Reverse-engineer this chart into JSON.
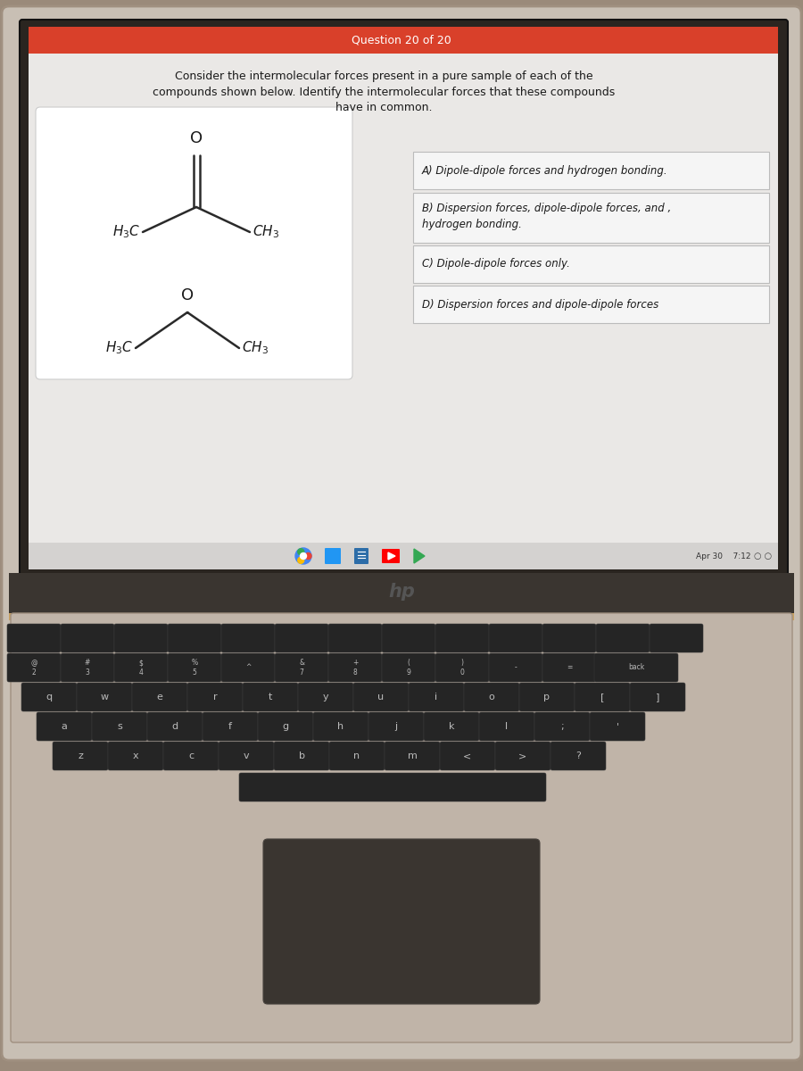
{
  "header_text": "Question 20 of 20",
  "header_bg": "#d9402a",
  "header_text_color": "#ffffff",
  "question_text_line1": "Consider the intermolecular forces present in a pure sample of each of the",
  "question_text_line2": "compounds shown below. Identify the intermolecular forces that these compounds",
  "question_text_line3": "have in common.",
  "screen_bg": "#d4d2d0",
  "content_bg": "#eae8e6",
  "answer_box_bg": "#f5f5f5",
  "answer_box_border": "#bbbbbb",
  "answer_a": "A) Dipole-dipole forces and hydrogen bonding.",
  "answer_b_line1": "B) Dispersion forces, dipole-dipole forces, and ,",
  "answer_b_line2": "hydrogen bonding.",
  "answer_c": "C) Dipole-dipole forces only.",
  "answer_d": "D) Dispersion forces and dipole-dipole forces",
  "keyboard_bg": "#c0b4a8",
  "key_bg": "#252525",
  "key_text_color": "#bbbbbb",
  "taskbar_bg": "#d4d2d0",
  "laptop_frame_bg": "#c8bfb4",
  "laptop_frame_dark": "#3a3530",
  "screen_bezel_bg": "#2a2520"
}
